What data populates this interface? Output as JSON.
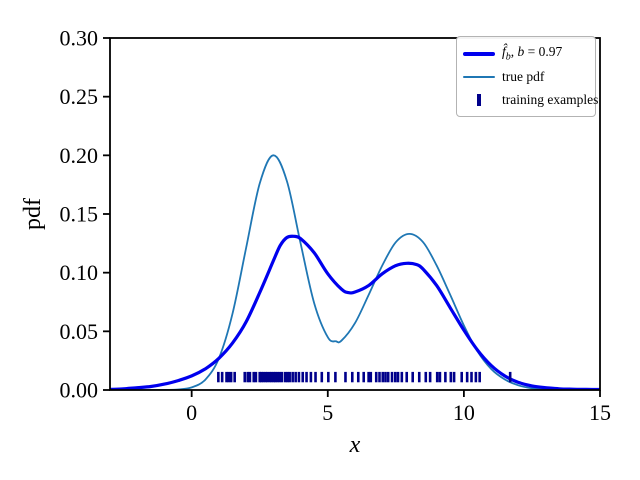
{
  "chart_data": {
    "type": "line",
    "title": "",
    "xlabel": "x",
    "ylabel": "pdf",
    "xlim": [
      -3,
      15
    ],
    "ylim": [
      0,
      0.3
    ],
    "grid": false,
    "legend_position": "upper right",
    "xticks": {
      "values": [
        0,
        5,
        10,
        15
      ],
      "labels": [
        "0",
        "5",
        "10",
        "15"
      ]
    },
    "yticks": {
      "values": [
        0,
        0.05,
        0.1,
        0.15,
        0.2,
        0.25,
        0.3
      ],
      "labels": [
        "0.00",
        "0.05",
        "0.10",
        "0.15",
        "0.20",
        "0.25",
        "0.30"
      ]
    },
    "series": [
      {
        "name": "kde-estimate",
        "legend": "f̂_b, b = 0.97",
        "color": "#0000ee",
        "linewidth": 3.2,
        "x": [
          -3,
          -2.5,
          -2,
          -1.5,
          -1,
          -0.5,
          0,
          0.5,
          1,
          1.5,
          2,
          2.5,
          3,
          3.25,
          3.5,
          3.75,
          4,
          4.5,
          5,
          5.5,
          5.75,
          6,
          6.5,
          7,
          7.5,
          7.9,
          8.25,
          8.5,
          9,
          9.5,
          10,
          10.5,
          11,
          11.5,
          12,
          12.5,
          13,
          13.5,
          14,
          14.5,
          15
        ],
        "y": [
          0.0005,
          0.001,
          0.002,
          0.003,
          0.005,
          0.008,
          0.012,
          0.018,
          0.027,
          0.04,
          0.058,
          0.083,
          0.11,
          0.123,
          0.13,
          0.131,
          0.129,
          0.117,
          0.099,
          0.086,
          0.083,
          0.0835,
          0.089,
          0.099,
          0.106,
          0.108,
          0.107,
          0.103,
          0.089,
          0.07,
          0.051,
          0.034,
          0.021,
          0.012,
          0.0065,
          0.0035,
          0.002,
          0.001,
          0.0007,
          0.0005,
          0.0004
        ]
      },
      {
        "name": "true-pdf",
        "legend": "true pdf",
        "color": "#1f77b4",
        "linewidth": 1.8,
        "x": [
          -3,
          -2,
          -1,
          -0.5,
          0,
          0.5,
          1,
          1.5,
          2,
          2.5,
          3,
          3.5,
          4,
          4.5,
          5,
          5.3,
          5.5,
          6,
          6.5,
          7,
          7.5,
          8,
          8.5,
          9,
          9.5,
          10,
          10.5,
          11,
          11.5,
          12,
          12.5,
          13,
          13.5,
          14,
          15
        ],
        "y": [
          0,
          0,
          0.0001,
          0.0004,
          0.0022,
          0.0088,
          0.027,
          0.065,
          0.121,
          0.176,
          0.2,
          0.178,
          0.125,
          0.074,
          0.045,
          0.0415,
          0.042,
          0.057,
          0.081,
          0.106,
          0.126,
          0.133,
          0.126,
          0.106,
          0.081,
          0.055,
          0.033,
          0.018,
          0.009,
          0.004,
          0.0015,
          0.0005,
          0.0002,
          0.0001,
          0
        ]
      }
    ],
    "rug": {
      "name": "training examples",
      "color": "#00008b",
      "center_value": 0.011,
      "positions": [
        0.98,
        1.12,
        1.28,
        1.36,
        1.45,
        1.58,
        1.95,
        2.06,
        2.14,
        2.28,
        2.36,
        2.5,
        2.56,
        2.63,
        2.71,
        2.78,
        2.87,
        2.94,
        3.02,
        3.08,
        3.16,
        3.24,
        3.32,
        3.44,
        3.52,
        3.6,
        3.71,
        3.82,
        3.94,
        4.08,
        4.22,
        4.38,
        4.55,
        4.78,
        5.02,
        5.28,
        5.65,
        5.9,
        6.12,
        6.32,
        6.5,
        6.58,
        6.78,
        6.9,
        7.02,
        7.12,
        7.22,
        7.36,
        7.48,
        7.58,
        7.72,
        7.9,
        8.12,
        8.36,
        8.6,
        8.76,
        9.02,
        9.12,
        9.32,
        9.52,
        9.64,
        9.92,
        10.12,
        10.28,
        10.44,
        10.58,
        11.7
      ]
    }
  },
  "legend": {
    "items": [
      {
        "f": "f̂",
        "sub": "b",
        "sep": ", ",
        "var": "b",
        "val": " = 0.97"
      },
      {
        "label": "true pdf"
      },
      {
        "label": "training examples"
      }
    ]
  }
}
